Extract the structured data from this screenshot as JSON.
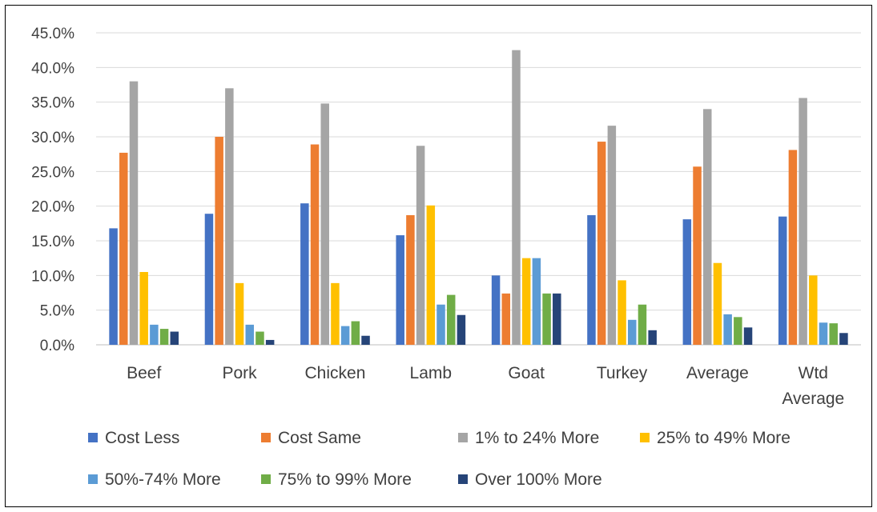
{
  "chart_data": {
    "type": "bar",
    "title": "",
    "xlabel": "",
    "ylabel": "",
    "ylim": [
      0,
      45
    ],
    "y_tick_labels": [
      "0.0%",
      "5.0%",
      "10.0%",
      "15.0%",
      "20.0%",
      "25.0%",
      "30.0%",
      "35.0%",
      "40.0%",
      "45.0%"
    ],
    "categories": [
      [
        "Beef"
      ],
      [
        "Pork"
      ],
      [
        "Chicken"
      ],
      [
        "Lamb"
      ],
      [
        "Goat"
      ],
      [
        "Turkey"
      ],
      [
        "Average"
      ],
      [
        "Wtd",
        "Average"
      ]
    ],
    "grid": true,
    "legend_position": "bottom",
    "series": [
      {
        "name": "Cost Less",
        "color": "#4472C4",
        "values": [
          16.8,
          18.9,
          20.4,
          15.8,
          10.0,
          18.7,
          18.1,
          18.5
        ]
      },
      {
        "name": "Cost Same",
        "color": "#ED7D31",
        "values": [
          27.7,
          30.0,
          28.9,
          18.7,
          7.4,
          29.3,
          25.7,
          28.1
        ]
      },
      {
        "name": "1% to 24% More",
        "color": "#A5A5A5",
        "values": [
          38.0,
          37.0,
          34.8,
          28.7,
          42.5,
          31.6,
          34.0,
          35.6
        ]
      },
      {
        "name": "25% to 49% More",
        "color": "#FFC000",
        "values": [
          10.5,
          8.9,
          8.9,
          20.1,
          12.5,
          9.3,
          11.8,
          10.0
        ]
      },
      {
        "name": "50%-74% More",
        "color": "#5B9BD5",
        "values": [
          2.9,
          2.9,
          2.7,
          5.8,
          12.5,
          3.6,
          4.4,
          3.2
        ]
      },
      {
        "name": "75% to 99% More",
        "color": "#70AD47",
        "values": [
          2.3,
          1.9,
          3.4,
          7.2,
          7.4,
          5.8,
          4.0,
          3.1
        ]
      },
      {
        "name": "Over 100% More",
        "color": "#264478",
        "values": [
          1.9,
          0.7,
          1.3,
          4.3,
          7.4,
          2.1,
          2.5,
          1.7
        ]
      }
    ]
  }
}
